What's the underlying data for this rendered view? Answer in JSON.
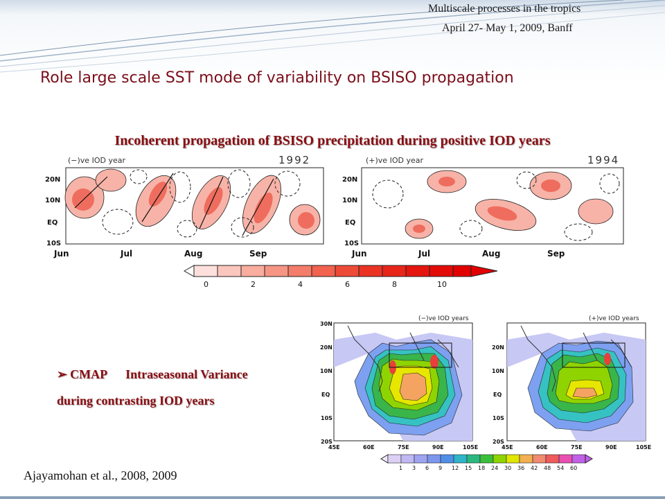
{
  "header": {
    "line1": "Multiscale processes in the tropics",
    "line2": "April 27- May 1, 2009, Banff"
  },
  "title": "Role large scale SST mode of variability on BSISO propagation",
  "hovmoller": {
    "heading": "Incoherent propagation of BSISO precipitation during positive IOD years",
    "left_label": "(−)ve IOD year",
    "left_year": "1992",
    "right_label": "(+)ve IOD year",
    "right_year": "1994",
    "y_ticks": [
      "20N",
      "10N",
      "EQ",
      "10S"
    ],
    "x_ticks": [
      "Jun",
      "Jul",
      "Aug",
      "Sep"
    ],
    "colorbar_ticks": [
      "0",
      "2",
      "4",
      "6",
      "8",
      "10"
    ]
  },
  "variance": {
    "left_label": "(−)ve IOD years",
    "right_label": "(+)ve IOD years",
    "y_ticks": [
      "30N",
      "20N",
      "10N",
      "EQ",
      "10S",
      "20S"
    ],
    "x_ticks": [
      "45E",
      "60E",
      "75E",
      "90E",
      "105E"
    ],
    "colorbar_ticks": [
      "1",
      "3",
      "6",
      "9",
      "12",
      "15",
      "18",
      "24",
      "30",
      "36",
      "42",
      "48",
      "54",
      "60"
    ]
  },
  "bullet": {
    "marker": "➢",
    "line1": "CMAP      Intraseasonal Variance",
    "line2": "during contrasting IOD years"
  },
  "citation": "Ajayamohan et al., 2008, 2009"
}
